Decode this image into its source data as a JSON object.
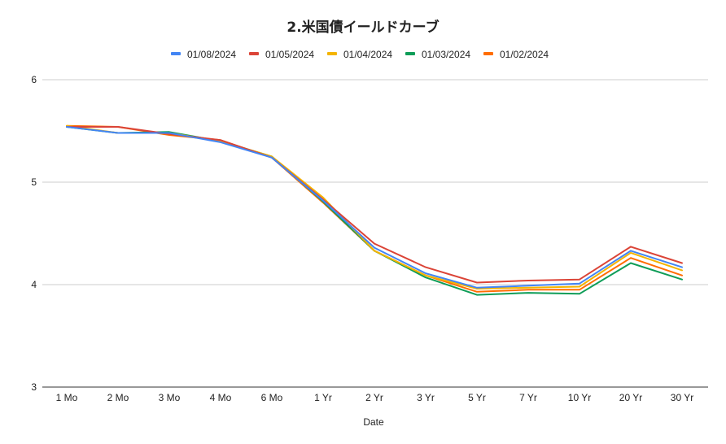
{
  "chart_data": {
    "type": "line",
    "title": "2.米国債イールドカーブ",
    "xlabel": "Date",
    "ylabel": "",
    "ylim": [
      3,
      6
    ],
    "yticks": [
      3,
      4,
      5,
      6
    ],
    "grid": true,
    "legend_position": "top",
    "categories": [
      "1 Mo",
      "2 Mo",
      "3 Mo",
      "4 Mo",
      "6 Mo",
      "1 Yr",
      "2 Yr",
      "3 Yr",
      "5 Yr",
      "7 Yr",
      "10 Yr",
      "20 Yr",
      "30 Yr"
    ],
    "series": [
      {
        "name": "01/08/2024",
        "color": "#4285f4",
        "values": [
          5.54,
          5.48,
          5.48,
          5.39,
          5.24,
          4.82,
          4.36,
          4.11,
          3.97,
          3.99,
          4.01,
          4.33,
          4.17
        ]
      },
      {
        "name": "01/05/2024",
        "color": "#db4437",
        "values": [
          5.54,
          5.54,
          5.47,
          5.41,
          5.24,
          4.83,
          4.4,
          4.17,
          4.02,
          4.04,
          4.05,
          4.37,
          4.21
        ]
      },
      {
        "name": "01/04/2024",
        "color": "#f4b400",
        "values": [
          5.55,
          5.48,
          5.48,
          5.4,
          5.25,
          4.85,
          4.33,
          4.09,
          3.96,
          3.97,
          3.98,
          4.31,
          4.14
        ]
      },
      {
        "name": "01/03/2024",
        "color": "#0f9d58",
        "values": [
          5.54,
          5.48,
          5.49,
          5.4,
          5.25,
          4.81,
          4.33,
          4.07,
          3.9,
          3.92,
          3.91,
          4.21,
          4.05
        ]
      },
      {
        "name": "01/02/2024",
        "color": "#ff6d01",
        "values": [
          5.55,
          5.54,
          5.46,
          5.41,
          5.24,
          4.8,
          4.33,
          4.09,
          3.93,
          3.95,
          3.95,
          4.26,
          4.09
        ]
      }
    ]
  }
}
